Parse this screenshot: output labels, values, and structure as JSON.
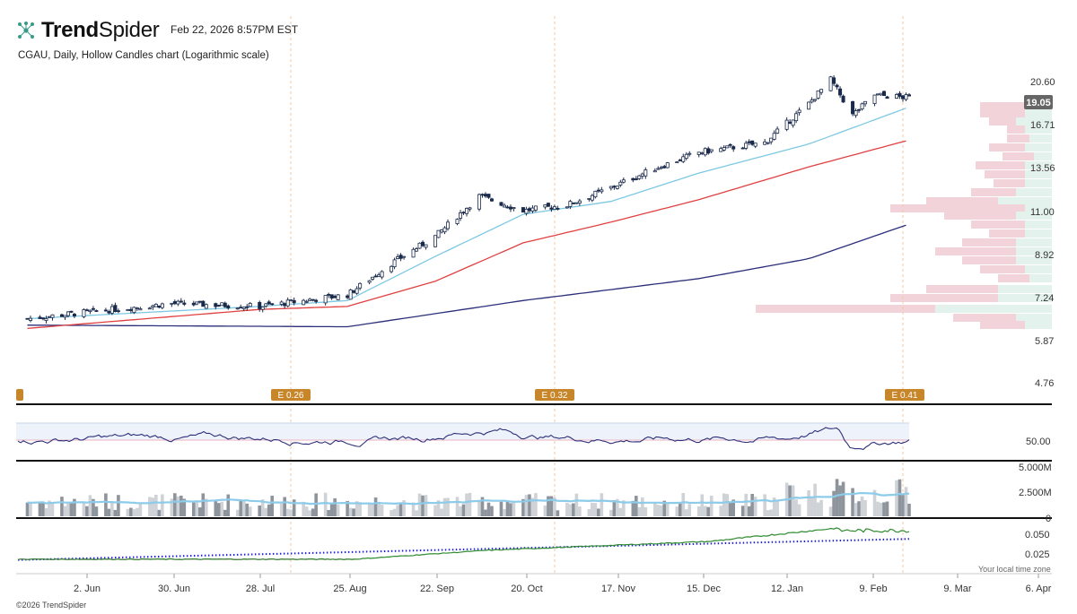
{
  "header": {
    "logo_word_1": "Trend",
    "logo_word_2": "Spider",
    "timestamp": "Feb 22, 2026 8:57PM EST",
    "chart_title": "CGAU, Daily, Hollow Candles chart (Logarithmic scale)"
  },
  "footer": {
    "copyright": "©2026 TrendSpider",
    "local_time_zone": "Your local time zone"
  },
  "colors": {
    "ema_short": "#7ec8e3",
    "sma_mid": "#e04040",
    "sma_long": "#2c2f7a",
    "candle": "#1a2a4a",
    "earnings_tag": "#c8862a",
    "volume_ma": "#8ccbea",
    "relative_strength": "#2e8b2e",
    "dotted_reference": "#1f1fd6",
    "volume_profile_red": "#f3d3da",
    "volume_profile_green": "#e3f2ec"
  },
  "chart_data": {
    "type": "candlestick",
    "ticker": "CGAU",
    "scale": "logarithmic",
    "price_axis_ticks": [
      "20.60",
      "16.71",
      "13.56",
      "11.00",
      "8.92",
      "7.24",
      "5.87",
      "4.76"
    ],
    "last_price_label": "19.05",
    "x_tick_labels": [
      "2. Jun",
      "30. Jun",
      "28. Jul",
      "25. Aug",
      "22. Sep",
      "20. Oct",
      "17. Nov",
      "15. Dec",
      "12. Jan",
      "9. Feb",
      "9. Mar",
      "6. Apr"
    ],
    "earnings_markers": [
      "E 0.26",
      "E 0.32",
      "E 0.41"
    ],
    "close_approx": [
      {
        "date": "2025-05-15",
        "close": 6.5
      },
      {
        "date": "2025-06-02",
        "close": 6.7
      },
      {
        "date": "2025-06-30",
        "close": 7.0
      },
      {
        "date": "2025-07-28",
        "close": 6.9
      },
      {
        "date": "2025-08-25",
        "close": 7.3
      },
      {
        "date": "2025-09-08",
        "close": 8.5
      },
      {
        "date": "2025-09-22",
        "close": 9.7
      },
      {
        "date": "2025-10-06",
        "close": 11.8
      },
      {
        "date": "2025-10-20",
        "close": 11.0
      },
      {
        "date": "2025-11-03",
        "close": 11.3
      },
      {
        "date": "2025-11-17",
        "close": 12.3
      },
      {
        "date": "2025-12-01",
        "close": 13.5
      },
      {
        "date": "2025-12-15",
        "close": 14.6
      },
      {
        "date": "2026-01-05",
        "close": 15.3
      },
      {
        "date": "2026-01-19",
        "close": 18.5
      },
      {
        "date": "2026-01-26",
        "close": 20.8
      },
      {
        "date": "2026-02-02",
        "close": 17.5
      },
      {
        "date": "2026-02-09",
        "close": 19.3
      },
      {
        "date": "2026-02-20",
        "close": 19.05
      }
    ],
    "ema_short_approx": [
      {
        "date": "2025-05-15",
        "value": 6.5
      },
      {
        "date": "2025-07-28",
        "value": 6.9
      },
      {
        "date": "2025-08-25",
        "value": 7.1
      },
      {
        "date": "2025-09-22",
        "value": 8.8
      },
      {
        "date": "2025-10-20",
        "value": 10.8
      },
      {
        "date": "2025-11-17",
        "value": 11.5
      },
      {
        "date": "2025-12-15",
        "value": 13.2
      },
      {
        "date": "2026-01-19",
        "value": 15.2
      },
      {
        "date": "2026-02-20",
        "value": 18.2
      }
    ],
    "sma_mid_approx": [
      {
        "date": "2025-05-15",
        "value": 6.2
      },
      {
        "date": "2025-07-28",
        "value": 6.8
      },
      {
        "date": "2025-08-25",
        "value": 6.9
      },
      {
        "date": "2025-09-22",
        "value": 7.8
      },
      {
        "date": "2025-10-20",
        "value": 9.4
      },
      {
        "date": "2025-11-17",
        "value": 10.4
      },
      {
        "date": "2025-12-15",
        "value": 11.6
      },
      {
        "date": "2026-01-19",
        "value": 13.6
      },
      {
        "date": "2026-02-20",
        "value": 15.5
      }
    ],
    "sma_long_approx": [
      {
        "date": "2025-05-15",
        "value": 6.3
      },
      {
        "date": "2025-08-25",
        "value": 6.25
      },
      {
        "date": "2025-10-20",
        "value": 7.1
      },
      {
        "date": "2025-12-15",
        "value": 7.9
      },
      {
        "date": "2026-01-19",
        "value": 8.7
      },
      {
        "date": "2026-02-20",
        "value": 10.3
      }
    ],
    "rsi_panel": {
      "tick_labels": [
        "50.00"
      ]
    },
    "volume_panel": {
      "tick_labels": [
        "5.000M",
        "2.500M",
        "0"
      ]
    },
    "relative_strength_panel": {
      "tick_labels": [
        "0.050",
        "0.025"
      ]
    }
  }
}
